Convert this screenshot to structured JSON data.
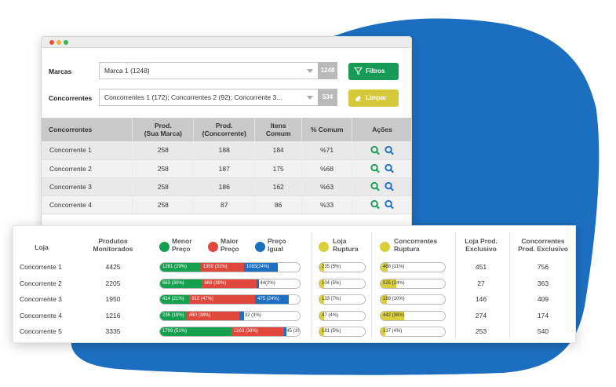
{
  "colors": {
    "accent_blue": "#1c6fc0",
    "green": "#15a04f",
    "red": "#e0483c",
    "yellow": "#d9cf3d",
    "filter_btn": "#179a56",
    "clear_btn": "#d6c83b"
  },
  "filters": {
    "marcas_label": "Marcas",
    "marcas_value": "Marca 1 (1248)",
    "marcas_count": "1248",
    "concorrentes_label": "Concorrentes",
    "concorrentes_value": "Concorrentes 1 (172); Concorrentes 2 (92); Concorrente 3...",
    "concorrentes_count": "534",
    "filtros_label": "Filtros",
    "limpar_label": "Limpar"
  },
  "top_table": {
    "headers": [
      "Concorrentes",
      "Prod.\n(Sua Marca)",
      "Prod.\n(Concorrente)",
      "Itens\nComum",
      "% Comum",
      "Ações"
    ],
    "rows": [
      [
        "Concorrente 1",
        "258",
        "188",
        "184",
        "%71"
      ],
      [
        "Concorrente 2",
        "258",
        "187",
        "175",
        "%68"
      ],
      [
        "Concorrente 3",
        "258",
        "186",
        "162",
        "%63"
      ],
      [
        "Concorrente 4",
        "258",
        "87",
        "86",
        "%33"
      ]
    ]
  },
  "bottom_table": {
    "headers": {
      "loja": "Loja",
      "produtos": "Produtos\nMonitorados",
      "menor": "Menor\nPreço",
      "maior": "Maior\nPreço",
      "igual": "Preço\nIgual",
      "loja_ruptura": "Loja\nRuptura",
      "conc_ruptura": "Concorrentes\nRuptura",
      "loja_exclusivo": "Loja Prod.\nExclusivo",
      "conc_exclusivo": "Concorrentes\nProd. Exclusivo"
    },
    "rows": [
      {
        "loja": "Concorrente 1",
        "produtos": "4425",
        "menor": "1281 (29%)",
        "menor_pct": 29,
        "maior": "1359 (31%)",
        "maior_pct": 31,
        "igual": "1083(24%)",
        "igual_pct": 24,
        "loja_ruptura": "235 (5%)",
        "loja_ruptura_pct": 5,
        "conc_ruptura": "468 (11%)",
        "conc_ruptura_pct": 11,
        "loja_exclusivo": "451",
        "conc_exclusivo": "756"
      },
      {
        "loja": "Concorrente 2",
        "produtos": "2205",
        "menor": "663 (30%)",
        "menor_pct": 30,
        "maior": "869 (39%)",
        "maior_pct": 39,
        "igual": "44(2%)",
        "igual_pct": 2,
        "loja_ruptura": "104 (5%)",
        "loja_ruptura_pct": 5,
        "conc_ruptura": "525 (24%)",
        "conc_ruptura_pct": 24,
        "loja_exclusivo": "27",
        "conc_exclusivo": "363"
      },
      {
        "loja": "Concorrente 3",
        "produtos": "1950",
        "menor": "414 (21%)",
        "menor_pct": 21,
        "maior": "910 (47%)",
        "maior_pct": 47,
        "igual": "475 (24%)",
        "igual_pct": 24,
        "loja_ruptura": "133 (7%)",
        "loja_ruptura_pct": 7,
        "conc_ruptura": "188 (10%)",
        "conc_ruptura_pct": 10,
        "loja_exclusivo": "146",
        "conc_exclusivo": "409"
      },
      {
        "loja": "Concorrente 4",
        "produtos": "1216",
        "menor": "235 (19%)",
        "menor_pct": 19,
        "maior": "460 (38%)",
        "maior_pct": 38,
        "igual": "32 (3%)",
        "igual_pct": 3,
        "loja_ruptura": "47 (4%)",
        "loja_ruptura_pct": 4,
        "conc_ruptura": "442 (36%)",
        "conc_ruptura_pct": 36,
        "loja_exclusivo": "274",
        "conc_exclusivo": "174"
      },
      {
        "loja": "Concorrente 5",
        "produtos": "3335",
        "menor": "1709 (51%)",
        "menor_pct": 51,
        "maior": "1263 (38%)",
        "maior_pct": 38,
        "igual": "45 (1%)",
        "igual_pct": 1,
        "loja_ruptura": "181 (5%)",
        "loja_ruptura_pct": 5,
        "conc_ruptura": "137 (4%)",
        "conc_ruptura_pct": 4,
        "loja_exclusivo": "253",
        "conc_exclusivo": "540"
      }
    ]
  }
}
